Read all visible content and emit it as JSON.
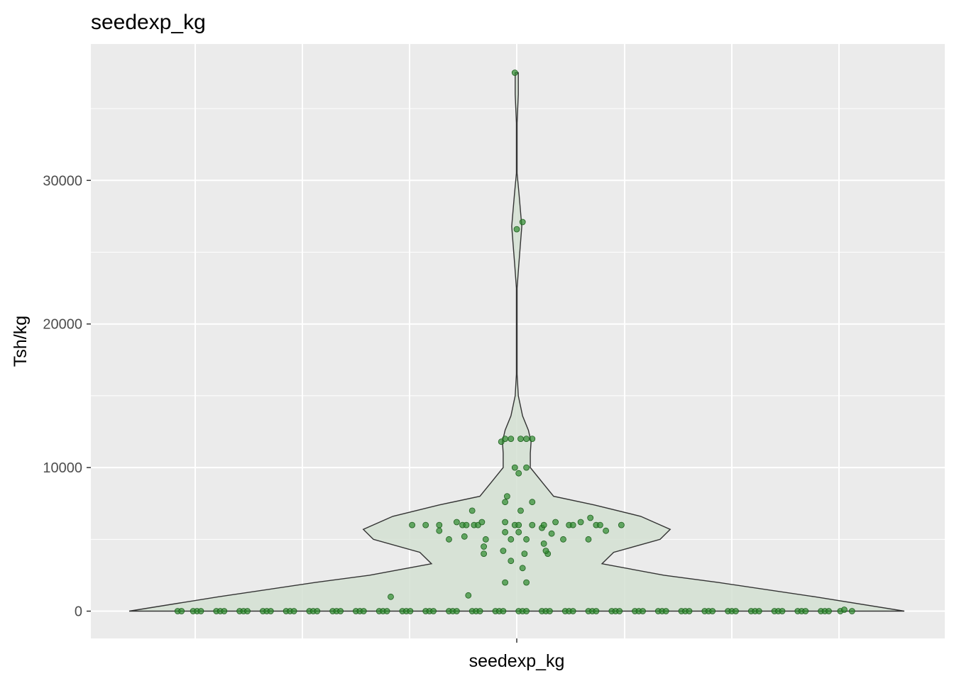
{
  "chart_data": {
    "type": "violin",
    "title": "seedexp_kg",
    "xlabel": "seedexp_kg",
    "ylabel": "Tsh/kg",
    "categories": [
      "seedexp_kg"
    ],
    "ylim": [
      -1900,
      39500
    ],
    "yticks": [
      0,
      10000,
      20000,
      30000
    ],
    "ytick_labels": [
      "0",
      "10000",
      "20000",
      "30000"
    ],
    "grid": true,
    "background": "#ebebeb",
    "violin_fill": "#d3e0d2",
    "violin_outline": "#333333",
    "point_color": "#2e8b2e",
    "density_profile": [
      {
        "y": 0,
        "w": 1.0
      },
      {
        "y": 1000,
        "w": 0.77
      },
      {
        "y": 2000,
        "w": 0.52
      },
      {
        "y": 2500,
        "w": 0.38
      },
      {
        "y": 3300,
        "w": 0.22
      },
      {
        "y": 4100,
        "w": 0.25
      },
      {
        "y": 5000,
        "w": 0.37
      },
      {
        "y": 5700,
        "w": 0.396
      },
      {
        "y": 6600,
        "w": 0.32
      },
      {
        "y": 7400,
        "w": 0.2
      },
      {
        "y": 8000,
        "w": 0.095
      },
      {
        "y": 9000,
        "w": 0.065
      },
      {
        "y": 10000,
        "w": 0.035
      },
      {
        "y": 11000,
        "w": 0.035
      },
      {
        "y": 11800,
        "w": 0.037
      },
      {
        "y": 12600,
        "w": 0.03
      },
      {
        "y": 13600,
        "w": 0.015
      },
      {
        "y": 15000,
        "w": 0.004
      },
      {
        "y": 16500,
        "w": 0.001
      },
      {
        "y": 22500,
        "w": 0.001
      },
      {
        "y": 24000,
        "w": 0.005
      },
      {
        "y": 26800,
        "w": 0.013
      },
      {
        "y": 29000,
        "w": 0.006
      },
      {
        "y": 30500,
        "w": 0.001
      },
      {
        "y": 34000,
        "w": 0.001
      },
      {
        "y": 36000,
        "w": 0.004
      },
      {
        "y": 37500,
        "w": 0.004
      }
    ],
    "points": [
      {
        "x": -0.875,
        "y": 0
      },
      {
        "x": -0.865,
        "y": 0
      },
      {
        "x": -0.835,
        "y": 0
      },
      {
        "x": -0.825,
        "y": 0
      },
      {
        "x": -0.815,
        "y": 0
      },
      {
        "x": -0.775,
        "y": 0
      },
      {
        "x": -0.765,
        "y": 0
      },
      {
        "x": -0.755,
        "y": 0
      },
      {
        "x": -0.715,
        "y": 0
      },
      {
        "x": -0.705,
        "y": 0
      },
      {
        "x": -0.695,
        "y": 0
      },
      {
        "x": -0.655,
        "y": 0
      },
      {
        "x": -0.645,
        "y": 0
      },
      {
        "x": -0.635,
        "y": 0
      },
      {
        "x": -0.595,
        "y": 0
      },
      {
        "x": -0.585,
        "y": 0
      },
      {
        "x": -0.575,
        "y": 0
      },
      {
        "x": -0.535,
        "y": 0
      },
      {
        "x": -0.525,
        "y": 0
      },
      {
        "x": -0.515,
        "y": 0
      },
      {
        "x": -0.475,
        "y": 0
      },
      {
        "x": -0.465,
        "y": 0
      },
      {
        "x": -0.455,
        "y": 0
      },
      {
        "x": -0.415,
        "y": 0
      },
      {
        "x": -0.405,
        "y": 0
      },
      {
        "x": -0.395,
        "y": 0
      },
      {
        "x": -0.355,
        "y": 0
      },
      {
        "x": -0.345,
        "y": 0
      },
      {
        "x": -0.335,
        "y": 0
      },
      {
        "x": -0.295,
        "y": 0
      },
      {
        "x": -0.285,
        "y": 0
      },
      {
        "x": -0.275,
        "y": 0
      },
      {
        "x": -0.235,
        "y": 0
      },
      {
        "x": -0.225,
        "y": 0
      },
      {
        "x": -0.215,
        "y": 0
      },
      {
        "x": -0.175,
        "y": 0
      },
      {
        "x": -0.165,
        "y": 0
      },
      {
        "x": -0.155,
        "y": 0
      },
      {
        "x": -0.115,
        "y": 0
      },
      {
        "x": -0.105,
        "y": 0
      },
      {
        "x": -0.095,
        "y": 0
      },
      {
        "x": -0.055,
        "y": 0
      },
      {
        "x": -0.045,
        "y": 0
      },
      {
        "x": -0.035,
        "y": 0
      },
      {
        "x": 0.005,
        "y": 0
      },
      {
        "x": 0.015,
        "y": 0
      },
      {
        "x": 0.025,
        "y": 0
      },
      {
        "x": 0.065,
        "y": 0
      },
      {
        "x": 0.075,
        "y": 0
      },
      {
        "x": 0.085,
        "y": 0
      },
      {
        "x": 0.125,
        "y": 0
      },
      {
        "x": 0.135,
        "y": 0
      },
      {
        "x": 0.145,
        "y": 0
      },
      {
        "x": 0.185,
        "y": 0
      },
      {
        "x": 0.195,
        "y": 0
      },
      {
        "x": 0.205,
        "y": 0
      },
      {
        "x": 0.245,
        "y": 0
      },
      {
        "x": 0.255,
        "y": 0
      },
      {
        "x": 0.265,
        "y": 0
      },
      {
        "x": 0.305,
        "y": 0
      },
      {
        "x": 0.315,
        "y": 0
      },
      {
        "x": 0.325,
        "y": 0
      },
      {
        "x": 0.365,
        "y": 0
      },
      {
        "x": 0.375,
        "y": 0
      },
      {
        "x": 0.385,
        "y": 0
      },
      {
        "x": 0.425,
        "y": 0
      },
      {
        "x": 0.435,
        "y": 0
      },
      {
        "x": 0.445,
        "y": 0
      },
      {
        "x": 0.485,
        "y": 0
      },
      {
        "x": 0.495,
        "y": 0
      },
      {
        "x": 0.505,
        "y": 0
      },
      {
        "x": 0.545,
        "y": 0
      },
      {
        "x": 0.555,
        "y": 0
      },
      {
        "x": 0.565,
        "y": 0
      },
      {
        "x": 0.605,
        "y": 0
      },
      {
        "x": 0.615,
        "y": 0
      },
      {
        "x": 0.625,
        "y": 0
      },
      {
        "x": 0.665,
        "y": 0
      },
      {
        "x": 0.675,
        "y": 0
      },
      {
        "x": 0.685,
        "y": 0
      },
      {
        "x": 0.725,
        "y": 0
      },
      {
        "x": 0.735,
        "y": 0
      },
      {
        "x": 0.745,
        "y": 0
      },
      {
        "x": 0.785,
        "y": 0
      },
      {
        "x": 0.795,
        "y": 0
      },
      {
        "x": 0.805,
        "y": 0
      },
      {
        "x": 0.835,
        "y": 0
      },
      {
        "x": 0.845,
        "y": 100
      },
      {
        "x": 0.865,
        "y": 0
      },
      {
        "x": -0.325,
        "y": 1000
      },
      {
        "x": -0.125,
        "y": 1100
      },
      {
        "x": -0.03,
        "y": 2000
      },
      {
        "x": 0.025,
        "y": 2000
      },
      {
        "x": 0.015,
        "y": 3000
      },
      {
        "x": -0.015,
        "y": 3500
      },
      {
        "x": 0.02,
        "y": 4000
      },
      {
        "x": -0.085,
        "y": 4000
      },
      {
        "x": 0.08,
        "y": 4000
      },
      {
        "x": -0.035,
        "y": 4200
      },
      {
        "x": 0.075,
        "y": 4200
      },
      {
        "x": -0.085,
        "y": 4500
      },
      {
        "x": 0.07,
        "y": 4700
      },
      {
        "x": 0.12,
        "y": 5000
      },
      {
        "x": -0.175,
        "y": 5000
      },
      {
        "x": -0.08,
        "y": 5000
      },
      {
        "x": -0.015,
        "y": 5000
      },
      {
        "x": 0.025,
        "y": 5000
      },
      {
        "x": 0.185,
        "y": 5000
      },
      {
        "x": -0.135,
        "y": 5200
      },
      {
        "x": 0.09,
        "y": 5400
      },
      {
        "x": -0.03,
        "y": 5500
      },
      {
        "x": 0.005,
        "y": 5500
      },
      {
        "x": -0.2,
        "y": 5600
      },
      {
        "x": 0.23,
        "y": 5600
      },
      {
        "x": 0.065,
        "y": 5800
      },
      {
        "x": -0.27,
        "y": 6000
      },
      {
        "x": -0.235,
        "y": 6000
      },
      {
        "x": -0.2,
        "y": 6000
      },
      {
        "x": -0.14,
        "y": 6000
      },
      {
        "x": -0.13,
        "y": 6000
      },
      {
        "x": -0.11,
        "y": 6000
      },
      {
        "x": -0.1,
        "y": 6000
      },
      {
        "x": -0.005,
        "y": 6000
      },
      {
        "x": 0.005,
        "y": 6000
      },
      {
        "x": 0.04,
        "y": 6000
      },
      {
        "x": 0.07,
        "y": 6000
      },
      {
        "x": 0.135,
        "y": 6000
      },
      {
        "x": 0.145,
        "y": 6000
      },
      {
        "x": 0.205,
        "y": 6000
      },
      {
        "x": 0.215,
        "y": 6000
      },
      {
        "x": 0.27,
        "y": 6000
      },
      {
        "x": -0.155,
        "y": 6200
      },
      {
        "x": -0.03,
        "y": 6200
      },
      {
        "x": 0.1,
        "y": 6200
      },
      {
        "x": -0.09,
        "y": 6200
      },
      {
        "x": 0.165,
        "y": 6200
      },
      {
        "x": 0.19,
        "y": 6500
      },
      {
        "x": -0.115,
        "y": 7000
      },
      {
        "x": 0.01,
        "y": 7000
      },
      {
        "x": -0.03,
        "y": 7600
      },
      {
        "x": 0.04,
        "y": 7600
      },
      {
        "x": -0.025,
        "y": 8000
      },
      {
        "x": 0.005,
        "y": 9600
      },
      {
        "x": -0.005,
        "y": 10000
      },
      {
        "x": 0.025,
        "y": 10000
      },
      {
        "x": -0.04,
        "y": 11800
      },
      {
        "x": -0.03,
        "y": 12000
      },
      {
        "x": -0.015,
        "y": 12000
      },
      {
        "x": 0.01,
        "y": 12000
      },
      {
        "x": 0.025,
        "y": 12000
      },
      {
        "x": 0.04,
        "y": 12000
      },
      {
        "x": 0.0,
        "y": 26600
      },
      {
        "x": 0.015,
        "y": 27100
      },
      {
        "x": -0.005,
        "y": 37500
      }
    ]
  }
}
